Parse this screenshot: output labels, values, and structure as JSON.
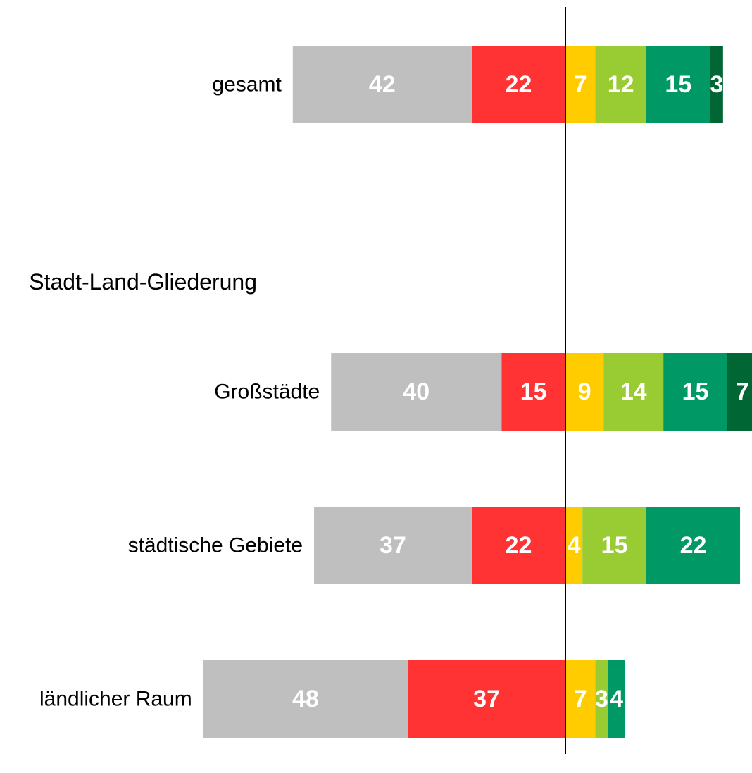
{
  "chart_data": {
    "type": "diverging_bar",
    "group_label": "Stadt-Land-Gliederung",
    "categories": [
      "gesamt",
      "Großstädte",
      "städtische Gebiete",
      "ländlicher Raum"
    ],
    "series": [
      {
        "color": "#bfbfbf",
        "side": "left",
        "values": [
          42,
          40,
          37,
          48
        ]
      },
      {
        "color": "#ff3333",
        "side": "left",
        "values": [
          22,
          15,
          22,
          37
        ]
      },
      {
        "color": "#ffcc00",
        "side": "right",
        "values": [
          7,
          9,
          4,
          7
        ]
      },
      {
        "color": "#99cc33",
        "side": "right",
        "values": [
          12,
          14,
          15,
          3
        ]
      },
      {
        "color": "#009966",
        "side": "right",
        "values": [
          15,
          15,
          22,
          4
        ]
      },
      {
        "color": "#006633",
        "side": "right",
        "values": [
          3,
          7,
          null,
          null
        ]
      }
    ]
  }
}
